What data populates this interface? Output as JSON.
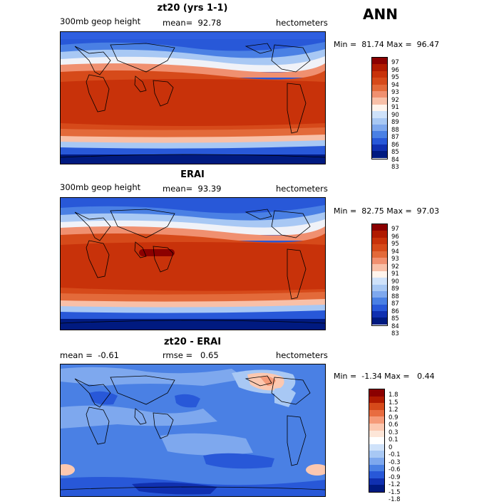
{
  "season": "ANN",
  "panels": [
    {
      "title": "zt20 (yrs 1-1)",
      "left": "300mb geop height",
      "middle": "mean=  92.78",
      "right": "hectometers",
      "minmax": "Min =  81.74 Max =  96.47",
      "legend": [
        "97",
        "96",
        "95",
        "94",
        "93",
        "92",
        "91",
        "90",
        "89",
        "88",
        "87",
        "86",
        "85",
        "84",
        "83"
      ]
    },
    {
      "title": "ERAI",
      "left": "300mb geop height",
      "middle": "mean=  93.39",
      "right": "hectometers",
      "minmax": "Min =  82.75 Max =  97.03",
      "legend": [
        "97",
        "96",
        "95",
        "94",
        "93",
        "92",
        "91",
        "90",
        "89",
        "88",
        "87",
        "86",
        "85",
        "84",
        "83"
      ]
    },
    {
      "title": "zt20 - ERAI",
      "left": "mean =  -0.61",
      "middle": "rmse =   0.65",
      "right": "hectometers",
      "minmax": "Min =  -1.34 Max =   0.44",
      "legend": [
        "1.8",
        "1.5",
        "1.2",
        "0.9",
        "0.6",
        "0.3",
        "0.1",
        "0",
        "-0.1",
        "-0.3",
        "-0.6",
        "-0.9",
        "-1.2",
        "-1.5",
        "-1.8"
      ]
    }
  ],
  "colors": {
    "abs_scale": [
      "#8b0000",
      "#b01a00",
      "#c8320a",
      "#d64a1a",
      "#e36a3a",
      "#f09070",
      "#f8c0a8",
      "#fff4ec",
      "#cfe2fa",
      "#a8c8f4",
      "#7ea8ee",
      "#4a80e4",
      "#2858d8",
      "#1030b0",
      "#001a80"
    ],
    "diff_scale": [
      "#8b0000",
      "#b01a00",
      "#d64a1a",
      "#e86c40",
      "#f59a78",
      "#fcc8b0",
      "#fde6d8",
      "#ffffff",
      "#cfe2fa",
      "#a8c8f4",
      "#7ea8ee",
      "#4a80e4",
      "#2858d8",
      "#1030b0",
      "#001a80"
    ]
  }
}
